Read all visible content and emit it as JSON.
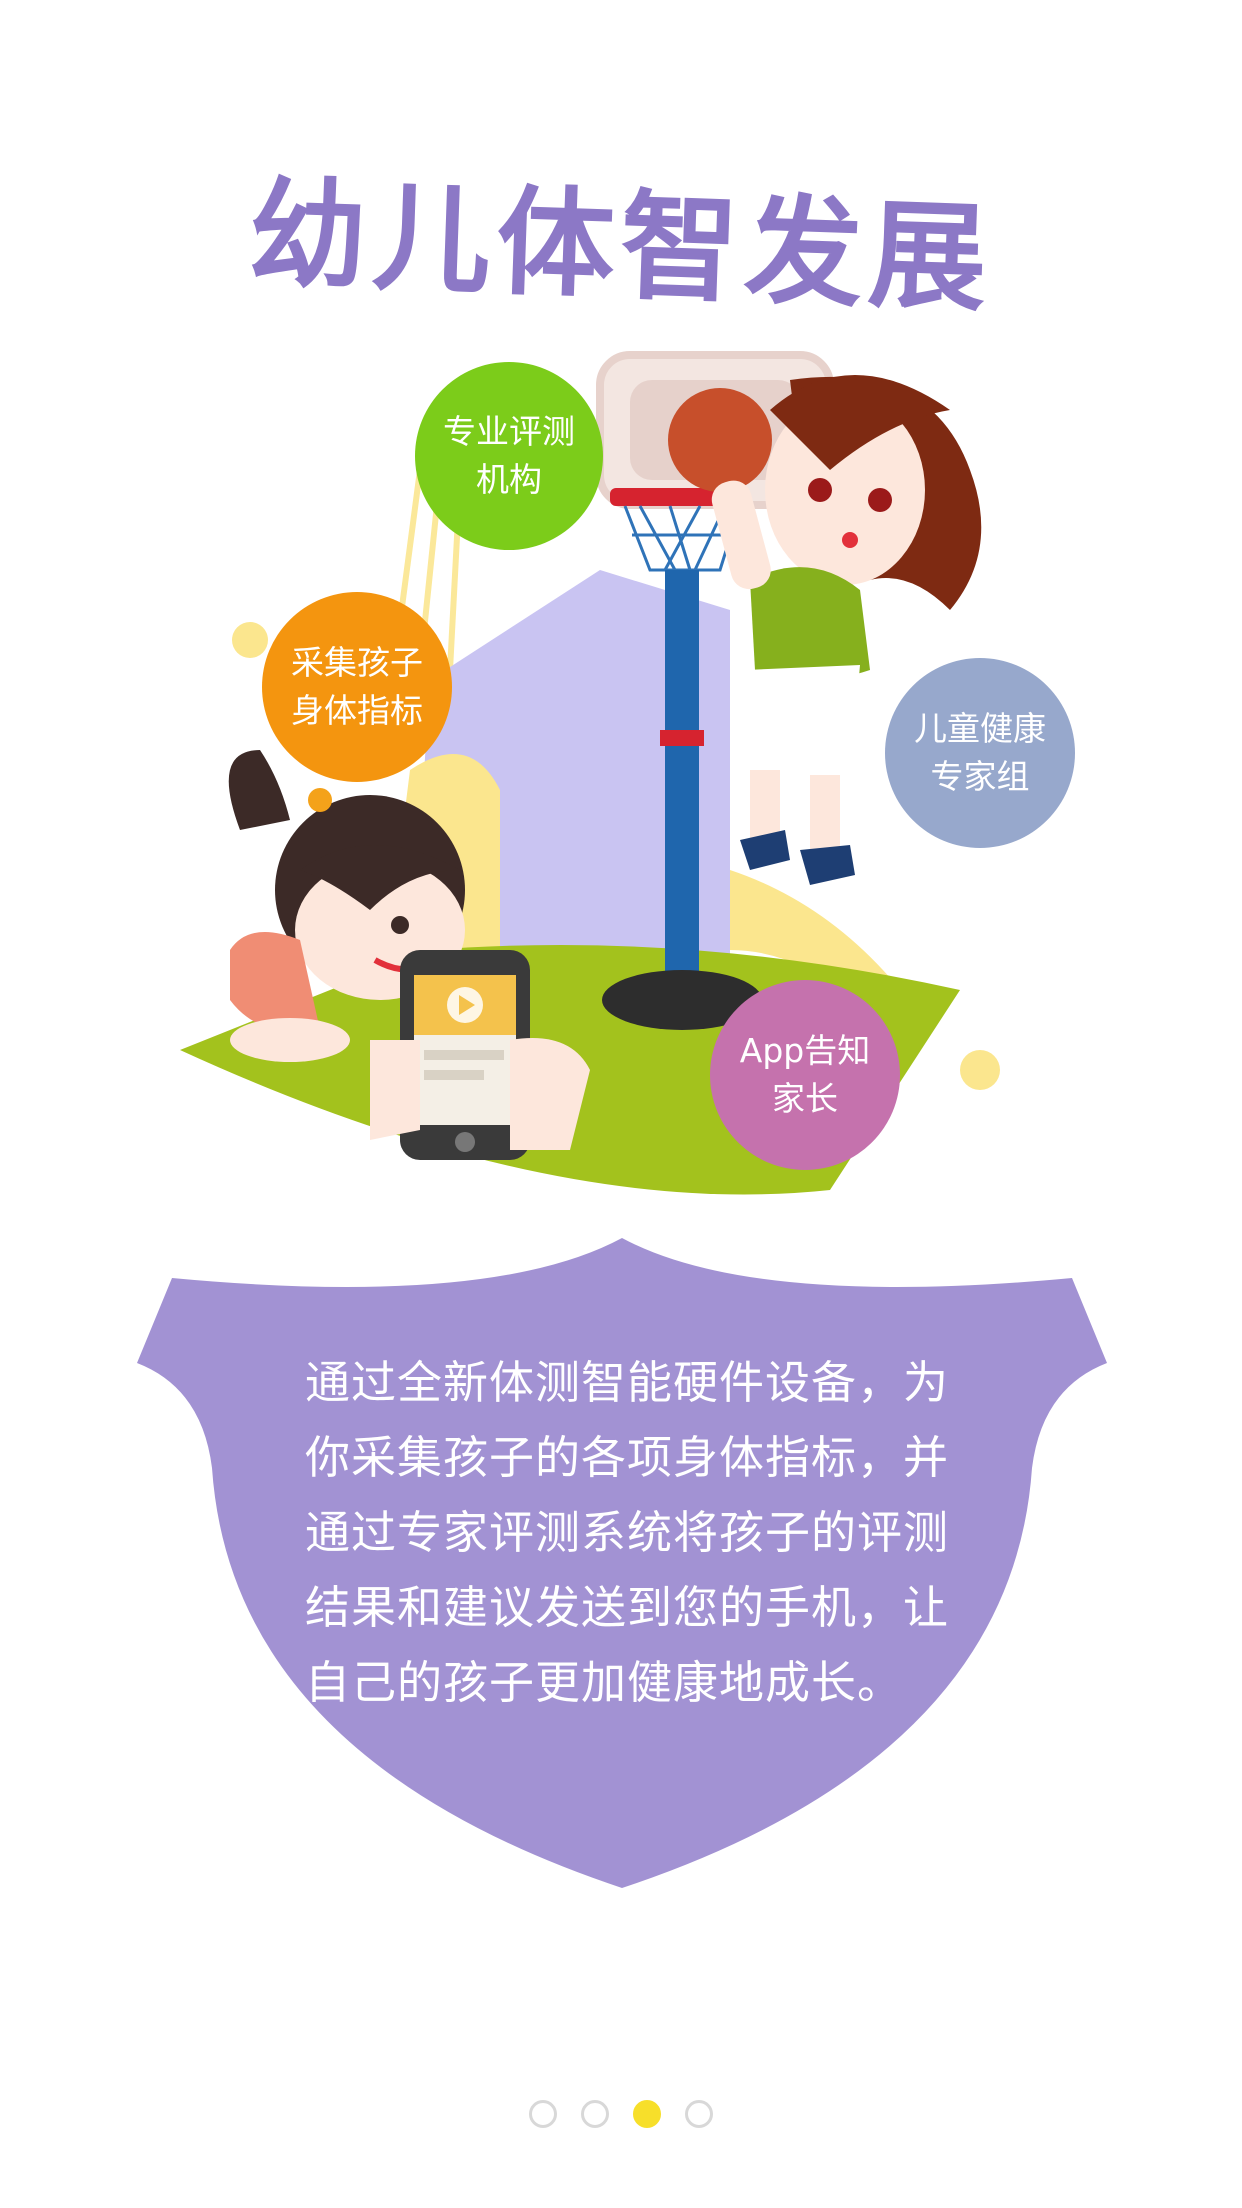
{
  "page": {
    "title": "幼儿体智发展",
    "description": "通过全新体测智能硬件设备，为你采集孩子的各项身体指标，并通过专家评测系统将孩子的评测结果和建议发送到您的手机，让自己的孩子更加健康地成长。"
  },
  "bubbles": [
    {
      "line1": "专业评测",
      "line2": "机构",
      "color": "#7ccc1a"
    },
    {
      "line1": "采集孩子",
      "line2": "身体指标",
      "color": "#f4950f"
    },
    {
      "line1": "儿童健康",
      "line2": "专家组",
      "color": "#97a8cc"
    },
    {
      "line1": "App告知",
      "line2": "家长",
      "color": "#c572ad"
    }
  ],
  "pager": {
    "count": 4,
    "active_index": 2
  },
  "colors": {
    "title": "#8c78c6",
    "shield": "#a292d3",
    "pager_active": "#f7df2a"
  },
  "icons": [
    "basketball-hoop-icon",
    "phone-icon",
    "play-icon"
  ]
}
